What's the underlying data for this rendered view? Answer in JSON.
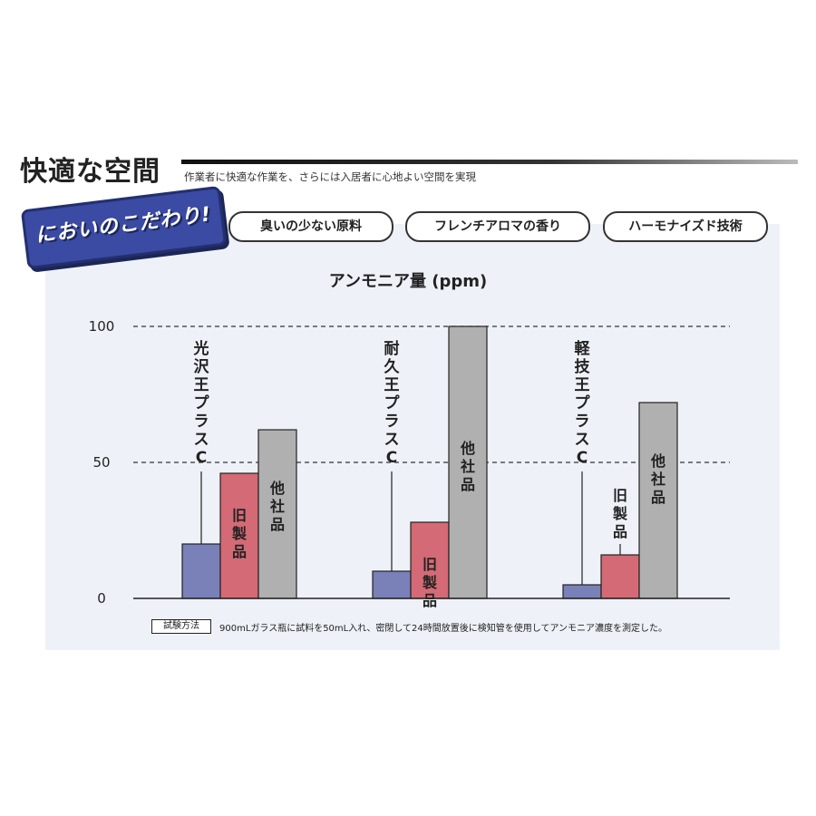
{
  "header": {
    "title": "快適な空間",
    "subtitle": "作業者に快適な作業を、さらには入居者に心地よい空間を実現"
  },
  "badge": {
    "label": "においのこだわり!"
  },
  "pills": [
    {
      "label": "臭いの少ない原料"
    },
    {
      "label": "フレンチアロマの香り"
    },
    {
      "label": "ハーモナイズド技術"
    }
  ],
  "footnote": {
    "box_label": "試験方法",
    "text": "900mLガラス瓶に試料を50mL入れ、密閉して24時間放置後に検知管を使用してアンモニア濃度を測定した。"
  },
  "colors": {
    "product": "#7a80b8",
    "old_product": "#d46a75",
    "other_company": "#b0b0b0",
    "badge": "#3b4aa3"
  },
  "chart_data": {
    "type": "bar",
    "title": "アンモニア量 (ppm)",
    "xlabel": "",
    "ylabel": "",
    "ylim": [
      0,
      100
    ],
    "yticks": [
      "0",
      "50",
      "100"
    ],
    "grid": "dashed at 50 and 100",
    "groups": [
      {
        "name": "光沢王プラスC",
        "values": [
          20,
          46,
          62
        ],
        "labels": [
          "光沢王プラスC",
          "旧製品",
          "他社品"
        ]
      },
      {
        "name": "耐久王プラスC",
        "values": [
          10,
          28,
          100
        ],
        "labels": [
          "耐久王プラスC",
          "旧製品",
          "他社品"
        ]
      },
      {
        "name": "軽技王プラスC",
        "values": [
          5,
          16,
          72
        ],
        "labels": [
          "軽技王プラスC",
          "旧製品",
          "他社品"
        ]
      }
    ]
  }
}
